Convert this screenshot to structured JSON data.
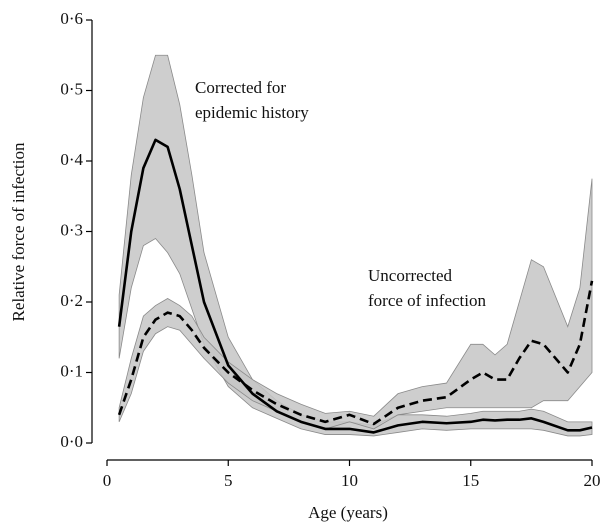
{
  "chart_data": {
    "type": "line",
    "x_label": "Age (years)",
    "y_label": "Relative force of infection",
    "xlim": [
      0,
      20
    ],
    "xticks": [
      0,
      5,
      10,
      15,
      20
    ],
    "ylim": [
      0,
      0.6
    ],
    "yticks": [
      {
        "value": 0,
        "label": "0·0"
      },
      {
        "value": 0.1,
        "label": "0·1"
      },
      {
        "value": 0.2,
        "label": "0·2"
      },
      {
        "value": 0.3,
        "label": "0·3"
      },
      {
        "value": 0.4,
        "label": "0·4"
      },
      {
        "value": 0.5,
        "label": "0·5"
      },
      {
        "value": 0.6,
        "label": "0·6"
      }
    ],
    "x": [
      0.5,
      1,
      1.5,
      2,
      2.5,
      3,
      3.5,
      4,
      5,
      6,
      7,
      8,
      9,
      10,
      11,
      12,
      13,
      14,
      15,
      15.5,
      16,
      16.5,
      17,
      17.5,
      18,
      19,
      19.5,
      20
    ],
    "band_color": "#c6c6c6",
    "series": [
      {
        "color": "#000000",
        "dash": false,
        "values": [
          0.165,
          0.3,
          0.39,
          0.43,
          0.42,
          0.36,
          0.28,
          0.2,
          0.11,
          0.07,
          0.045,
          0.03,
          0.02,
          0.02,
          0.015,
          0.025,
          0.03,
          0.028,
          0.03,
          0.033,
          0.032,
          0.033,
          0.033,
          0.035,
          0.03,
          0.018,
          0.018,
          0.022
        ],
        "lower": [
          0.12,
          0.22,
          0.28,
          0.29,
          0.27,
          0.24,
          0.19,
          0.14,
          0.08,
          0.05,
          0.035,
          0.02,
          0.012,
          0.012,
          0.01,
          0.015,
          0.02,
          0.018,
          0.02,
          0.02,
          0.02,
          0.02,
          0.02,
          0.02,
          0.018,
          0.01,
          0.01,
          0.012
        ],
        "upper": [
          0.21,
          0.38,
          0.49,
          0.55,
          0.55,
          0.48,
          0.38,
          0.27,
          0.15,
          0.09,
          0.06,
          0.04,
          0.03,
          0.03,
          0.025,
          0.04,
          0.04,
          0.038,
          0.042,
          0.045,
          0.045,
          0.045,
          0.045,
          0.048,
          0.045,
          0.03,
          0.03,
          0.03
        ]
      },
      {
        "color": "#000000",
        "dash": true,
        "values": [
          0.04,
          0.09,
          0.15,
          0.175,
          0.185,
          0.18,
          0.16,
          0.135,
          0.1,
          0.075,
          0.055,
          0.04,
          0.03,
          0.04,
          0.027,
          0.05,
          0.06,
          0.065,
          0.09,
          0.1,
          0.09,
          0.09,
          0.12,
          0.145,
          0.14,
          0.1,
          0.14,
          0.23
        ],
        "lower": [
          0.03,
          0.07,
          0.13,
          0.155,
          0.165,
          0.16,
          0.14,
          0.12,
          0.085,
          0.06,
          0.045,
          0.03,
          0.02,
          0.03,
          0.02,
          0.04,
          0.045,
          0.05,
          0.05,
          0.05,
          0.05,
          0.05,
          0.05,
          0.05,
          0.06,
          0.06,
          0.08,
          0.1
        ],
        "upper": [
          0.05,
          0.12,
          0.18,
          0.195,
          0.205,
          0.195,
          0.18,
          0.15,
          0.115,
          0.09,
          0.07,
          0.055,
          0.042,
          0.045,
          0.038,
          0.07,
          0.08,
          0.085,
          0.14,
          0.14,
          0.125,
          0.14,
          0.2,
          0.26,
          0.25,
          0.165,
          0.22,
          0.375
        ]
      }
    ],
    "annotations": [
      {
        "lines": [
          "Corrected for",
          "epidemic history"
        ]
      },
      {
        "lines": [
          "Uncorrected",
          "force of infection"
        ]
      }
    ]
  }
}
